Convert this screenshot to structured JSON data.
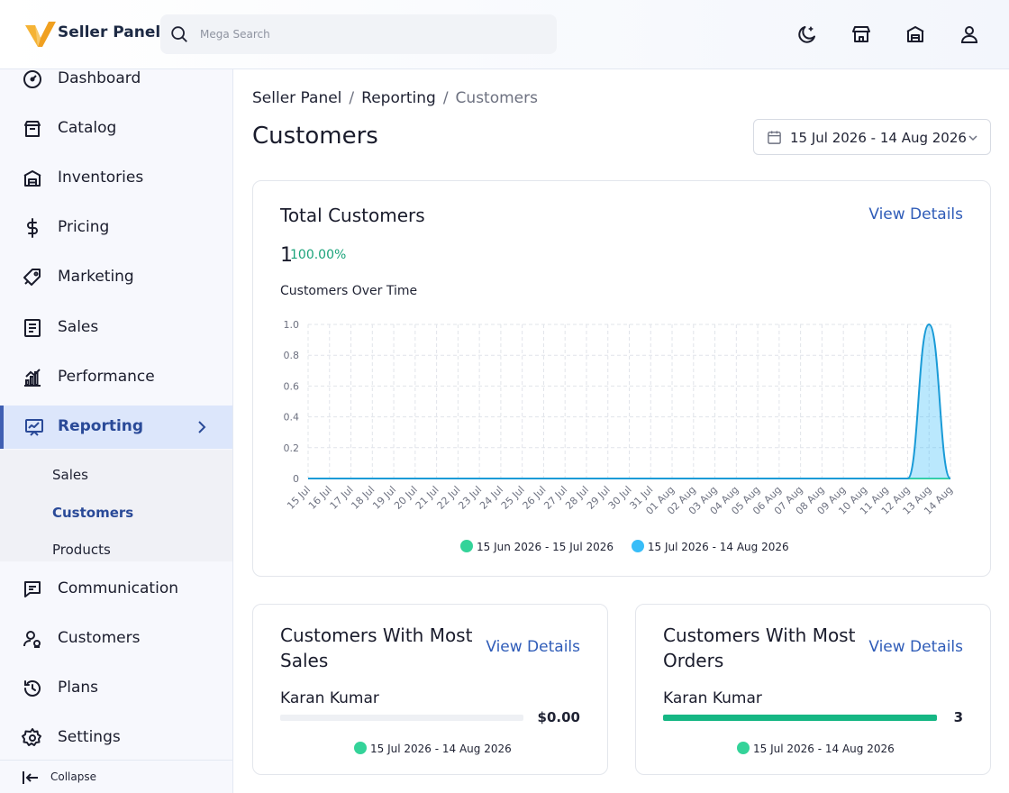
{
  "header": {
    "brand": "Seller Panel",
    "search_placeholder": "Mega Search",
    "icons": [
      "moon-icon",
      "storefront-icon",
      "store-icon",
      "user-icon"
    ]
  },
  "sidebar": {
    "items": [
      {
        "label": "Dashboard",
        "icon": "dashboard-icon"
      },
      {
        "label": "Catalog",
        "icon": "catalog-icon"
      },
      {
        "label": "Inventories",
        "icon": "warehouse-icon"
      },
      {
        "label": "Pricing",
        "icon": "dollar-icon"
      },
      {
        "label": "Marketing",
        "icon": "tag-icon"
      },
      {
        "label": "Sales",
        "icon": "receipt-icon"
      },
      {
        "label": "Performance",
        "icon": "bar-chart-icon"
      },
      {
        "label": "Reporting",
        "icon": "report-icon",
        "active": true
      },
      {
        "label": "Communication",
        "icon": "chat-icon"
      },
      {
        "label": "Customers",
        "icon": "customers-icon"
      },
      {
        "label": "Plans",
        "icon": "history-icon"
      },
      {
        "label": "Settings",
        "icon": "gear-icon"
      }
    ],
    "subitems": [
      {
        "label": "Sales"
      },
      {
        "label": "Customers",
        "active": true
      },
      {
        "label": "Products"
      }
    ],
    "collapse_label": "Collapse"
  },
  "breadcrumb": [
    "Seller Panel",
    "Reporting",
    "Customers"
  ],
  "page_title": "Customers",
  "date_range": "15 Jul 2026 - 14 Aug 2026",
  "total_customers": {
    "title": "Total Customers",
    "view_details": "View Details",
    "value": "1",
    "change": "100.00%",
    "chart_title": "Customers Over Time"
  },
  "chart_data": {
    "type": "area",
    "title": "Customers Over Time",
    "x": [
      "15 Jul",
      "16 Jul",
      "17 Jul",
      "18 Jul",
      "19 Jul",
      "20 Jul",
      "21 Jul",
      "22 Jul",
      "23 Jul",
      "24 Jul",
      "25 Jul",
      "26 Jul",
      "27 Jul",
      "28 Jul",
      "29 Jul",
      "30 Jul",
      "31 Jul",
      "01 Aug",
      "02 Aug",
      "03 Aug",
      "04 Aug",
      "05 Aug",
      "06 Aug",
      "07 Aug",
      "08 Aug",
      "09 Aug",
      "10 Aug",
      "11 Aug",
      "12 Aug",
      "13 Aug",
      "14 Aug"
    ],
    "y_ticks": [
      "0",
      "0.2",
      "0.4",
      "0.6",
      "0.8",
      "1.0"
    ],
    "ylim": [
      0,
      1
    ],
    "grid": true,
    "legend_position": "bottom",
    "series": [
      {
        "name": "15 Jun 2026 - 15 Jul 2026",
        "color": "#34d399",
        "values": [
          0,
          0,
          0,
          0,
          0,
          0,
          0,
          0,
          0,
          0,
          0,
          0,
          0,
          0,
          0,
          0,
          0,
          0,
          0,
          0,
          0,
          0,
          0,
          0,
          0,
          0,
          0,
          0,
          0,
          0,
          0
        ]
      },
      {
        "name": "15 Jul 2026 - 14 Aug 2026",
        "color": "#38bdf8",
        "values": [
          0,
          0,
          0,
          0,
          0,
          0,
          0,
          0,
          0,
          0,
          0,
          0,
          0,
          0,
          0,
          0,
          0,
          0,
          0,
          0,
          0,
          0,
          0,
          0,
          0,
          0,
          0,
          0,
          0,
          1,
          0
        ]
      }
    ]
  },
  "most_sales": {
    "title": "Customers With Most Sales",
    "view_details": "View Details",
    "rows": [
      {
        "name": "Karan Kumar",
        "value": "$0.00",
        "fraction": 0
      }
    ],
    "legend": "15 Jul 2026 - 14 Aug 2026",
    "legend_color": "#34d399"
  },
  "most_orders": {
    "title": "Customers With Most Orders",
    "view_details": "View Details",
    "rows": [
      {
        "name": "Karan Kumar",
        "value": "3",
        "fraction": 1
      }
    ],
    "legend": "15 Jul 2026 - 14 Aug 2026",
    "legend_color": "#34d399"
  }
}
